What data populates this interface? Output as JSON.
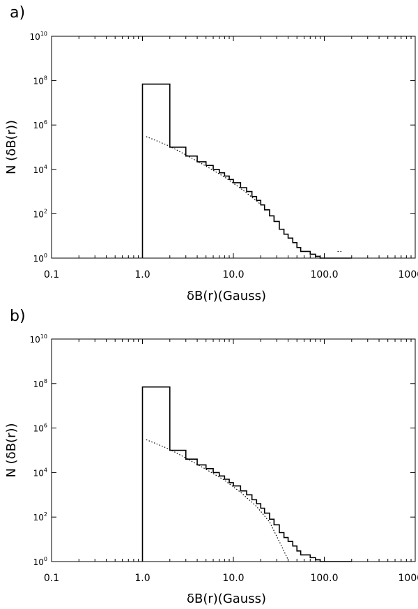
{
  "chart_data": [
    {
      "type": "line",
      "panel_label": "a)",
      "xlabel": "δB(r)(Gauss)",
      "ylabel": "N (δB(r))",
      "xscale": "log",
      "yscale": "log",
      "xlim": [
        0.1,
        1000.0
      ],
      "ylim": [
        1,
        10000000000.0
      ],
      "x_ticks": [
        "0.1",
        "1.0",
        "10.0",
        "100.0",
        "1000.0"
      ],
      "y_ticks": [
        {
          "value": 1,
          "base": "10",
          "exp": "0"
        },
        {
          "value": 100,
          "base": "10",
          "exp": "2"
        },
        {
          "value": 10000,
          "base": "10",
          "exp": "4"
        },
        {
          "value": 1000000,
          "base": "10",
          "exp": "6"
        },
        {
          "value": 100000000,
          "base": "10",
          "exp": "8"
        },
        {
          "value": 10000000000,
          "base": "10",
          "exp": "10"
        }
      ],
      "grid": false,
      "series": [
        {
          "style": "step",
          "x": [
            1,
            1,
            2,
            2,
            3,
            3,
            4,
            4,
            5,
            6,
            7,
            8,
            9,
            10,
            12,
            14,
            16,
            18,
            20,
            22,
            25,
            28,
            32,
            36,
            40,
            45,
            50,
            55,
            60,
            70,
            80,
            90,
            100,
            120,
            150,
            200
          ],
          "y": [
            1,
            70000000,
            200000,
            100000,
            100000,
            40000,
            30000,
            22000,
            15000,
            10000,
            7000,
            5000,
            3500,
            2500,
            1500,
            1000,
            600,
            400,
            250,
            150,
            80,
            45,
            20,
            12,
            8,
            5,
            3,
            2,
            2,
            1.5,
            1.2,
            1,
            1,
            1,
            1,
            1
          ]
        },
        {
          "style": "dotted",
          "x": [
            1.1,
            1.5,
            2,
            3,
            5,
            8,
            12,
            18,
            20
          ],
          "y": [
            300000,
            180000,
            110000,
            45000,
            14000,
            4500,
            1400,
            380,
            260
          ]
        },
        {
          "style": "dotted",
          "x": [
            140,
            150,
            160
          ],
          "y": [
            2,
            2,
            2
          ]
        }
      ]
    },
    {
      "type": "line",
      "panel_label": "b)",
      "xlabel": "δB(r)(Gauss)",
      "ylabel": "N (δB(r))",
      "xscale": "log",
      "yscale": "log",
      "xlim": [
        0.1,
        1000.0
      ],
      "ylim": [
        1,
        10000000000.0
      ],
      "x_ticks": [
        "0.1",
        "1.0",
        "10.0",
        "100.0",
        "1000.0"
      ],
      "y_ticks": [
        {
          "value": 1,
          "base": "10",
          "exp": "0"
        },
        {
          "value": 100,
          "base": "10",
          "exp": "2"
        },
        {
          "value": 10000,
          "base": "10",
          "exp": "4"
        },
        {
          "value": 1000000,
          "base": "10",
          "exp": "6"
        },
        {
          "value": 100000000,
          "base": "10",
          "exp": "8"
        },
        {
          "value": 10000000000,
          "base": "10",
          "exp": "10"
        }
      ],
      "grid": false,
      "series": [
        {
          "style": "step",
          "x": [
            1,
            1,
            2,
            2,
            3,
            3,
            4,
            4,
            5,
            6,
            7,
            8,
            9,
            10,
            12,
            14,
            16,
            18,
            20,
            22,
            25,
            28,
            32,
            36,
            40,
            45,
            50,
            55,
            60,
            70,
            80,
            90,
            100,
            120,
            150,
            200
          ],
          "y": [
            1,
            70000000,
            200000,
            100000,
            100000,
            40000,
            30000,
            22000,
            15000,
            10000,
            7000,
            5000,
            3500,
            2500,
            1500,
            1000,
            600,
            400,
            250,
            150,
            80,
            45,
            20,
            12,
            8,
            5,
            3,
            2,
            2,
            1.5,
            1.2,
            1,
            1,
            1,
            1,
            1
          ]
        },
        {
          "style": "dotted",
          "x": [
            1.1,
            1.5,
            2,
            3,
            5,
            8,
            12,
            18,
            25,
            32,
            40
          ],
          "y": [
            300000,
            180000,
            110000,
            45000,
            14000,
            4500,
            1300,
            300,
            60,
            8,
            1.2
          ]
        }
      ]
    }
  ]
}
